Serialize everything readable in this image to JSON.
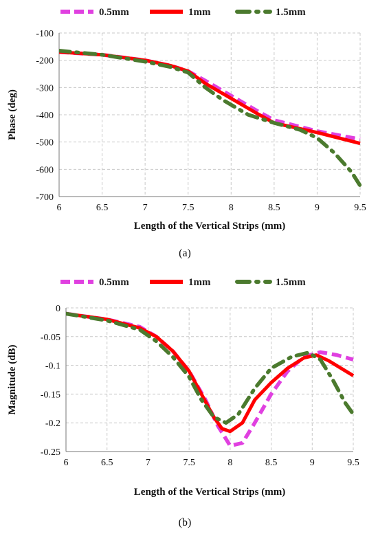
{
  "colors": {
    "s05": "#E040E0",
    "s10": "#FF0000",
    "s15": "#4B7A2E"
  },
  "captions": [
    "(a)",
    "(b)"
  ],
  "chart_data": [
    {
      "type": "line",
      "panel": "a",
      "xlabel": "Length of the Vertical Strips (mm)",
      "ylabel": "Phase (deg)",
      "xlim": [
        6,
        9.5
      ],
      "ylim": [
        -700,
        -100
      ],
      "xticks": [
        6,
        6.5,
        7,
        7.5,
        8,
        8.5,
        9,
        9.5
      ],
      "xtick_labels": [
        "6",
        "6.5",
        "7",
        "7.5",
        "8",
        "8.5",
        "9",
        "9.5"
      ],
      "yticks": [
        -100,
        -200,
        -300,
        -400,
        -500,
        -600,
        -700
      ],
      "ytick_labels": [
        "-100",
        "-200",
        "-300",
        "-400",
        "-500",
        "-600",
        "-700"
      ],
      "grid": true,
      "legend": "top",
      "series": [
        {
          "name": "0.5mm",
          "color": "#E040E0",
          "style": "dash",
          "x": [
            6,
            6.5,
            7,
            7.3,
            7.5,
            7.7,
            8,
            8.3,
            8.5,
            9,
            9.5
          ],
          "y": [
            -170,
            -180,
            -200,
            -220,
            -240,
            -275,
            -330,
            -385,
            -420,
            -460,
            -490
          ]
        },
        {
          "name": "1mm",
          "color": "#FF0000",
          "style": "solid",
          "x": [
            6,
            6.5,
            7,
            7.3,
            7.5,
            7.7,
            8,
            8.3,
            8.5,
            9,
            9.5
          ],
          "y": [
            -170,
            -180,
            -200,
            -220,
            -240,
            -285,
            -340,
            -395,
            -430,
            -465,
            -505
          ]
        },
        {
          "name": "1.5mm",
          "color": "#4B7A2E",
          "style": "dashdot",
          "x": [
            6,
            6.5,
            7,
            7.3,
            7.5,
            7.7,
            7.9,
            8.2,
            8.5,
            8.8,
            9,
            9.2,
            9.4,
            9.5
          ],
          "y": [
            -165,
            -180,
            -205,
            -225,
            -245,
            -300,
            -345,
            -400,
            -430,
            -455,
            -485,
            -540,
            -610,
            -660
          ]
        }
      ]
    },
    {
      "type": "line",
      "panel": "b",
      "xlabel": "Length of the Vertical Strips (mm)",
      "ylabel": "Magnitude (dB)",
      "xlim": [
        6,
        9.5
      ],
      "ylim": [
        -0.25,
        0
      ],
      "xticks": [
        6,
        6.5,
        7,
        7.5,
        8,
        8.5,
        9,
        9.5
      ],
      "xtick_labels": [
        "6",
        "6.5",
        "7",
        "7.5",
        "8",
        "8.5",
        "9",
        "9.5"
      ],
      "yticks": [
        0,
        -0.05,
        -0.1,
        -0.15,
        -0.2,
        -0.25
      ],
      "ytick_labels": [
        "0",
        "-0.05",
        "-0.1",
        "-0.15",
        "-0.2",
        "-0.25"
      ],
      "grid": true,
      "legend": "top",
      "series": [
        {
          "name": "0.5mm",
          "color": "#E040E0",
          "style": "dash",
          "x": [
            6,
            6.5,
            6.9,
            7.1,
            7.3,
            7.5,
            7.7,
            7.85,
            8,
            8.15,
            8.3,
            8.5,
            8.7,
            8.9,
            9.1,
            9.3,
            9.5
          ],
          "y": [
            -0.01,
            -0.02,
            -0.033,
            -0.05,
            -0.075,
            -0.11,
            -0.16,
            -0.205,
            -0.24,
            -0.235,
            -0.2,
            -0.15,
            -0.11,
            -0.085,
            -0.077,
            -0.082,
            -0.09
          ]
        },
        {
          "name": "1mm",
          "color": "#FF0000",
          "style": "solid",
          "x": [
            6,
            6.5,
            6.9,
            7.1,
            7.3,
            7.5,
            7.65,
            7.8,
            7.9,
            8,
            8.15,
            8.3,
            8.5,
            8.7,
            8.9,
            9.05,
            9.2,
            9.35,
            9.5
          ],
          "y": [
            -0.01,
            -0.02,
            -0.035,
            -0.05,
            -0.075,
            -0.11,
            -0.15,
            -0.19,
            -0.21,
            -0.215,
            -0.2,
            -0.16,
            -0.13,
            -0.105,
            -0.087,
            -0.082,
            -0.092,
            -0.105,
            -0.118
          ]
        },
        {
          "name": "1.5mm",
          "color": "#4B7A2E",
          "style": "dashdot",
          "x": [
            6,
            6.5,
            6.9,
            7.1,
            7.3,
            7.5,
            7.65,
            7.8,
            7.95,
            8.1,
            8.3,
            8.5,
            8.75,
            8.95,
            9.1,
            9.25,
            9.4,
            9.5
          ],
          "y": [
            -0.01,
            -0.022,
            -0.038,
            -0.058,
            -0.085,
            -0.12,
            -0.16,
            -0.19,
            -0.2,
            -0.185,
            -0.14,
            -0.105,
            -0.085,
            -0.078,
            -0.09,
            -0.125,
            -0.165,
            -0.185
          ]
        }
      ]
    }
  ]
}
